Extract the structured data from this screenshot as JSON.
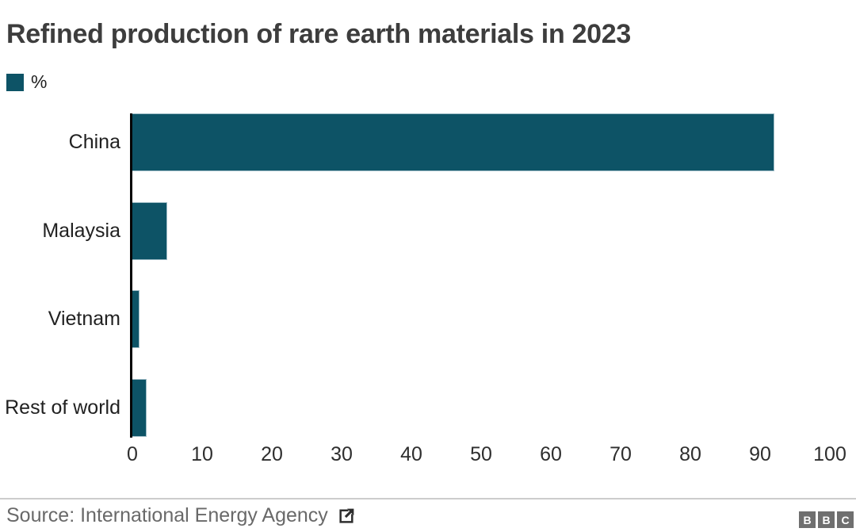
{
  "title": "Refined production of rare earth materials in 2023",
  "legend": {
    "label": "%",
    "swatch_color": "#0d5366",
    "swatch_icon": "legend-swatch-square"
  },
  "chart_data": {
    "type": "bar",
    "orientation": "horizontal",
    "title": "Refined production of rare earth materials in 2023",
    "unit": "%",
    "categories": [
      "China",
      "Malaysia",
      "Vietnam",
      "Rest of world"
    ],
    "values": [
      92,
      5,
      1,
      2
    ],
    "xlim": [
      0,
      100
    ],
    "x_ticks": [
      0,
      10,
      20,
      30,
      40,
      50,
      60,
      70,
      80,
      90,
      100
    ],
    "bar_color": "#0d5366",
    "axis_color": "#050505",
    "grid": false,
    "legend_position": "top-left"
  },
  "footer": {
    "source_text": "Source: International Energy Agency",
    "external_link_icon": "external-link-icon",
    "logo_letters": [
      "B",
      "B",
      "C"
    ],
    "logo_color": "#6f6f6f"
  }
}
